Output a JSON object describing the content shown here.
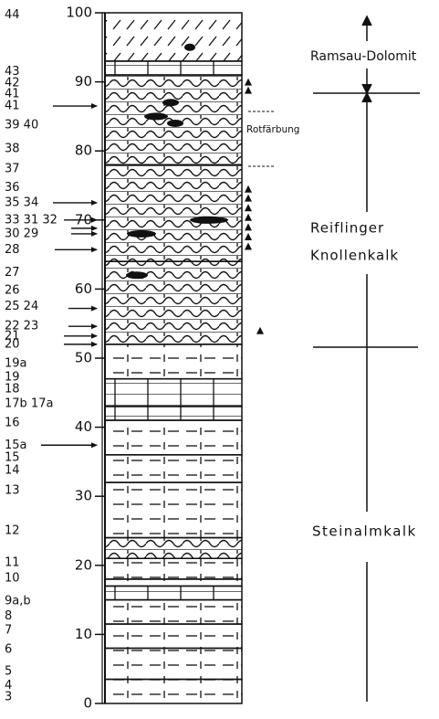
{
  "depth_scale": {
    "ticks": [
      0,
      10,
      20,
      30,
      40,
      50,
      60,
      70,
      80,
      90,
      100
    ]
  },
  "samples": [
    {
      "label": "44",
      "depth": 99.7
    },
    {
      "label": "43",
      "depth": 91.5
    },
    {
      "label": "42",
      "depth": 89.8
    },
    {
      "label": "41",
      "depth": 88.2
    },
    {
      "label": "41",
      "depth": 86.5
    },
    {
      "label": "39 40",
      "depth": 83.7
    },
    {
      "label": "38",
      "depth": 80.3
    },
    {
      "label": "37",
      "depth": 77.4
    },
    {
      "label": "36",
      "depth": 74.7
    },
    {
      "label": "35 34",
      "depth": 72.5
    },
    {
      "label": "33 31 32",
      "depth": 70
    },
    {
      "label": "30 29",
      "depth": 68
    },
    {
      "label": "28",
      "depth": 65.7
    },
    {
      "label": "27",
      "depth": 62.4
    },
    {
      "label": "26",
      "depth": 59.8
    },
    {
      "label": "25 24",
      "depth": 57.5
    },
    {
      "label": "22 23",
      "depth": 54.6
    },
    {
      "label": "21",
      "depth": 53.2
    },
    {
      "label": "20",
      "depth": 52
    },
    {
      "label": "19a",
      "depth": 49.2
    },
    {
      "label": "19",
      "depth": 47.2
    },
    {
      "label": "18",
      "depth": 45.5
    },
    {
      "label": "17b 17a",
      "depth": 43.4
    },
    {
      "label": "16",
      "depth": 40.6
    },
    {
      "label": "15a",
      "depth": 37.4
    },
    {
      "label": "15",
      "depth": 35.6
    },
    {
      "label": "14",
      "depth": 33.7
    },
    {
      "label": "13",
      "depth": 30.8
    },
    {
      "label": "12",
      "depth": 25
    },
    {
      "label": "11",
      "depth": 20.4
    },
    {
      "label": "10",
      "depth": 18.1
    },
    {
      "label": "9a,b",
      "depth": 14.8
    },
    {
      "label": "8",
      "depth": 12.6
    },
    {
      "label": "7",
      "depth": 10.6
    },
    {
      "label": "6",
      "depth": 7.8
    },
    {
      "label": "5",
      "depth": 4.6
    },
    {
      "label": "4",
      "depth": 2.6
    },
    {
      "label": "3",
      "depth": 0.9
    }
  ],
  "units": {
    "top": "Ramsau-Dolomit",
    "middle": [
      "Reiflinger",
      "Knollenkalk"
    ],
    "bottom": "Steinalmkalk"
  },
  "annotation": "Rotfärbung"
}
